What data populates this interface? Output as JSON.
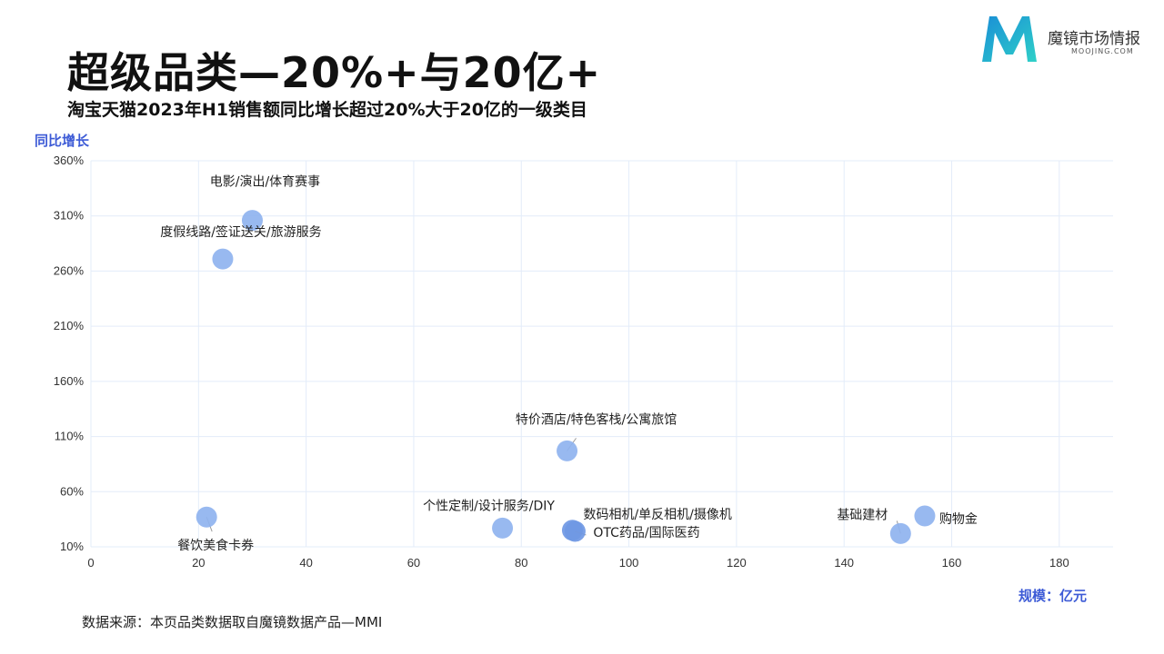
{
  "header": {
    "title": "超级品类—20%+与20亿+",
    "subtitle": "淘宝天猫2023年H1销售额同比增长超过20%大于20亿的一级类目"
  },
  "logo": {
    "name": "魔镜市场情报",
    "sub": "MOOJING.COM"
  },
  "footer": {
    "source": "数据来源：本页品类数据取自魔镜数据产品—MMI"
  },
  "chart_data": {
    "type": "scatter",
    "title": "超级品类—20%+与20亿+",
    "xlabel": "规模：亿元",
    "ylabel": "同比增长",
    "xlim": [
      0,
      190
    ],
    "ylim": [
      10,
      360
    ],
    "xticks": [
      0,
      20,
      40,
      60,
      80,
      100,
      120,
      140,
      160,
      180
    ],
    "yticks": [
      10,
      60,
      110,
      160,
      210,
      260,
      310,
      360
    ],
    "ytick_format": "%",
    "grid": true,
    "points": [
      {
        "name": "电影/演出/体育赛事",
        "x": 30,
        "y": 306,
        "color": "#8fb3ef"
      },
      {
        "name": "度假线路/签证送关/旅游服务",
        "x": 24.5,
        "y": 271,
        "color": "#8fb3ef"
      },
      {
        "name": "特价酒店/特色客栈/公寓旅馆",
        "x": 88.5,
        "y": 97,
        "color": "#8fb3ef"
      },
      {
        "name": "餐饮美食卡券",
        "x": 21.5,
        "y": 37,
        "color": "#8fb3ef"
      },
      {
        "name": "个性定制/设计服务/DIY",
        "x": 76.5,
        "y": 27,
        "color": "#8fb3ef"
      },
      {
        "name": "数码相机/单反相机/摄像机",
        "x": 89.5,
        "y": 25,
        "color": "#6f98e4"
      },
      {
        "name": "OTC药品/国际医药",
        "x": 90,
        "y": 24,
        "color": "#6f98e4"
      },
      {
        "name": "基础建材",
        "x": 150.5,
        "y": 22,
        "color": "#8fb3ef"
      },
      {
        "name": "购物金",
        "x": 155,
        "y": 38,
        "color": "#8fb3ef"
      }
    ],
    "colors": {
      "grid": "#e3ecf9",
      "axis_label": "#3d5bd6",
      "point": "#8fb3ef",
      "leader": "#9a9a9a"
    }
  }
}
